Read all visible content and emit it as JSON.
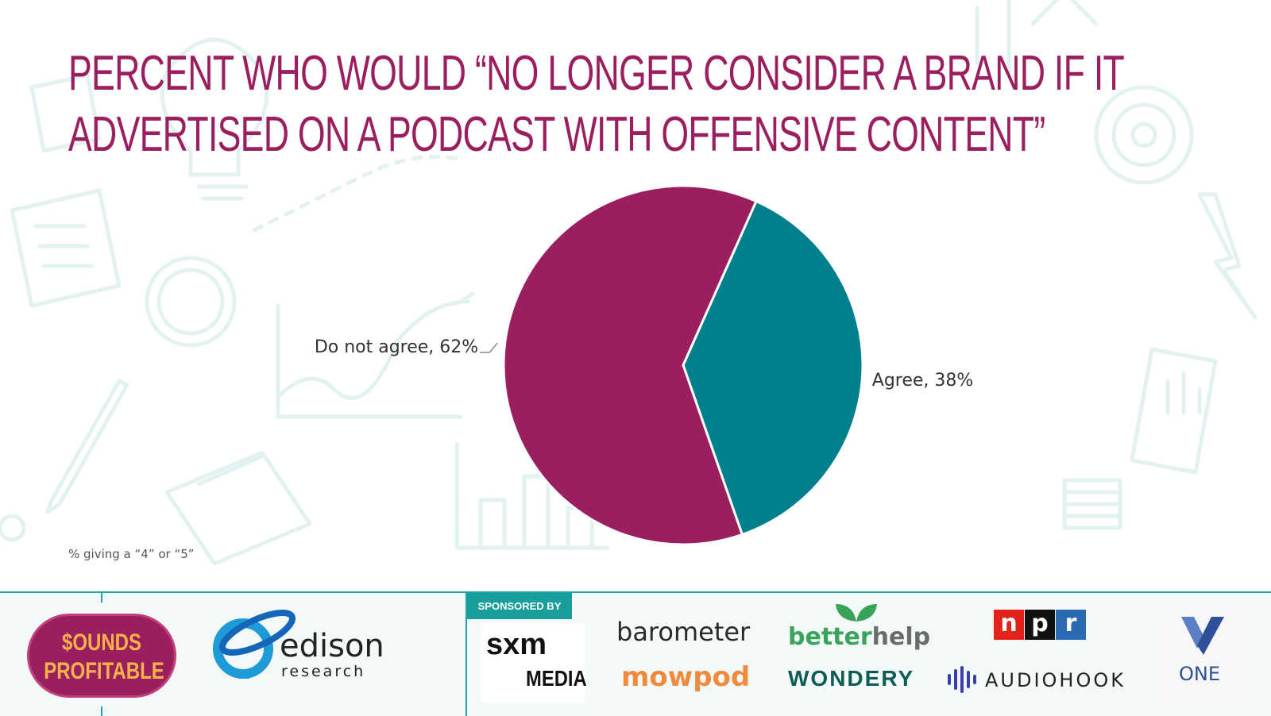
{
  "title_lines": [
    "PERCENT WHO WOULD “NO LONGER CONSIDER A BRAND IF IT",
    "ADVERTISED ON A PODCAST WITH OFFENSIVE CONTENT”"
  ],
  "footnote": "% giving a “4” or “5”",
  "colors": {
    "title": "#9b1e5f",
    "do_not_agree": "#9b1e5f",
    "agree": "#007f8c",
    "accent": "#1ca6a3"
  },
  "chart_data": {
    "type": "pie",
    "title": "PERCENT WHO WOULD “NO LONGER CONSIDER A BRAND IF IT ADVERTISED ON A PODCAST WITH OFFENSIVE CONTENT”",
    "slices": [
      {
        "label": "Agree",
        "value": 38,
        "color": "#007f8c",
        "data_label": "Agree, 38%"
      },
      {
        "label": "Do not agree",
        "value": 62,
        "color": "#9b1e5f",
        "data_label": "Do not agree, 62%"
      }
    ],
    "legend": "none"
  },
  "footer": {
    "sponsored_by": "SPONSORED BY",
    "logos": {
      "sounds_profitable": [
        "$OUNDS",
        "PROFITABLE"
      ],
      "edison": "edison",
      "edison_sub": "research",
      "sxm": "sxm",
      "sxm_sub": "MEDIA",
      "barometer": "barometer",
      "mowpod": "mowpod",
      "betterhelp_a": "better",
      "betterhelp_b": "help",
      "wondery": "WONDERY",
      "npr": [
        "n",
        "p",
        "r"
      ],
      "audiohook": "AUDIOHOOK",
      "one": "ONE"
    }
  }
}
